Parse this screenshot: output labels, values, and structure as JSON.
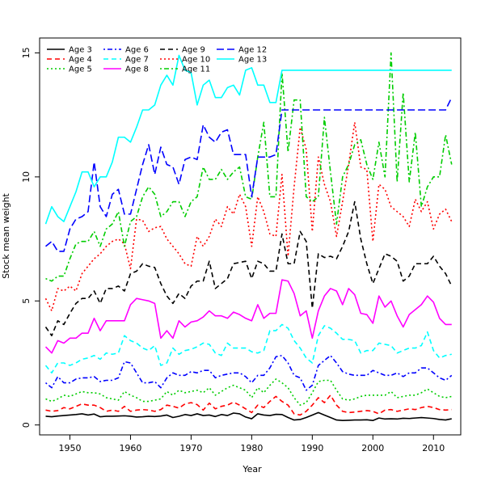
{
  "chart_data": {
    "type": "line",
    "xlabel": "Year",
    "ylabel": "Stock mean weight",
    "xlim": [
      1945,
      2014.5
    ],
    "ylim": [
      -0.4,
      15.6
    ],
    "x_ticks": [
      1950,
      1960,
      1970,
      1980,
      1990,
      2000,
      2010
    ],
    "y_ticks": [
      0,
      5,
      10,
      15
    ],
    "grid": false,
    "legend_position": "top-left",
    "x": [
      1946,
      1947,
      1948,
      1949,
      1950,
      1951,
      1952,
      1953,
      1954,
      1955,
      1956,
      1957,
      1958,
      1959,
      1960,
      1961,
      1962,
      1963,
      1964,
      1965,
      1966,
      1967,
      1968,
      1969,
      1970,
      1971,
      1972,
      1973,
      1974,
      1975,
      1976,
      1977,
      1978,
      1979,
      1980,
      1981,
      1982,
      1983,
      1984,
      1985,
      1986,
      1987,
      1988,
      1989,
      1990,
      1991,
      1992,
      1993,
      1994,
      1995,
      1996,
      1997,
      1998,
      1999,
      2000,
      2001,
      2002,
      2003,
      2004,
      2005,
      2006,
      2007,
      2008,
      2009,
      2010,
      2011,
      2012,
      2013
    ],
    "series": [
      {
        "name": "Age 3",
        "color": "#000000",
        "dash": "solid",
        "values": [
          0.35,
          0.33,
          0.36,
          0.38,
          0.4,
          0.42,
          0.45,
          0.4,
          0.44,
          0.33,
          0.35,
          0.35,
          0.36,
          0.37,
          0.35,
          0.32,
          0.33,
          0.35,
          0.34,
          0.36,
          0.4,
          0.3,
          0.35,
          0.42,
          0.38,
          0.45,
          0.38,
          0.4,
          0.34,
          0.42,
          0.38,
          0.48,
          0.45,
          0.32,
          0.25,
          0.45,
          0.4,
          0.38,
          0.43,
          0.42,
          0.3,
          0.2,
          0.22,
          0.3,
          0.4,
          0.5,
          0.4,
          0.3,
          0.2,
          0.18,
          0.19,
          0.2,
          0.2,
          0.21,
          0.18,
          0.28,
          0.24,
          0.25,
          0.24,
          0.27,
          0.26,
          0.28,
          0.3,
          0.28,
          0.26,
          0.22,
          0.2,
          0.25
        ]
      },
      {
        "name": "Age 4",
        "color": "#ff0000",
        "dash": "dashed",
        "values": [
          0.6,
          0.55,
          0.58,
          0.7,
          0.65,
          0.75,
          0.85,
          0.8,
          0.8,
          0.7,
          0.55,
          0.6,
          0.55,
          0.75,
          0.55,
          0.6,
          0.62,
          0.6,
          0.55,
          0.62,
          0.8,
          0.75,
          0.68,
          0.85,
          0.9,
          0.82,
          0.6,
          0.88,
          0.65,
          0.75,
          0.8,
          0.92,
          0.8,
          0.65,
          0.5,
          0.8,
          0.7,
          0.95,
          1.15,
          0.95,
          0.8,
          0.45,
          0.4,
          0.55,
          0.8,
          1.1,
          0.9,
          1.2,
          0.8,
          0.55,
          0.5,
          0.52,
          0.55,
          0.58,
          0.55,
          0.45,
          0.6,
          0.62,
          0.55,
          0.6,
          0.65,
          0.62,
          0.7,
          0.75,
          0.7,
          0.62,
          0.6,
          0.62
        ]
      },
      {
        "name": "Age 5",
        "color": "#00cd00",
        "dash": "dotted",
        "values": [
          1.05,
          0.95,
          1.05,
          1.2,
          1.15,
          1.25,
          1.35,
          1.3,
          1.3,
          1.25,
          1.1,
          1.05,
          1.0,
          1.35,
          1.2,
          1.1,
          0.95,
          0.95,
          1.0,
          1.05,
          1.35,
          1.2,
          1.4,
          1.3,
          1.35,
          1.4,
          1.3,
          1.5,
          1.2,
          1.35,
          1.5,
          1.6,
          1.5,
          1.4,
          1.1,
          1.5,
          1.3,
          1.6,
          1.85,
          1.7,
          1.5,
          1.1,
          0.8,
          0.9,
          1.3,
          1.75,
          1.8,
          1.8,
          1.4,
          1.05,
          1.0,
          1.05,
          1.15,
          1.2,
          1.2,
          1.2,
          1.2,
          1.35,
          1.1,
          1.15,
          1.2,
          1.2,
          1.3,
          1.45,
          1.3,
          1.15,
          1.1,
          1.15
        ]
      },
      {
        "name": "Age 6",
        "color": "#0000ff",
        "dash": "dashdot",
        "values": [
          1.7,
          1.5,
          1.95,
          1.7,
          1.7,
          1.85,
          1.9,
          1.9,
          1.95,
          1.75,
          1.8,
          1.8,
          1.9,
          2.55,
          2.5,
          2.1,
          1.7,
          1.7,
          1.75,
          1.5,
          1.9,
          2.1,
          2.0,
          2.0,
          2.15,
          2.1,
          2.2,
          2.2,
          1.9,
          2.0,
          2.05,
          2.1,
          2.1,
          1.95,
          1.7,
          2.0,
          2.0,
          2.3,
          2.75,
          2.8,
          2.5,
          2.0,
          1.9,
          1.4,
          1.6,
          2.4,
          2.6,
          2.8,
          2.5,
          2.15,
          2.05,
          2.0,
          2.0,
          2.0,
          2.2,
          2.1,
          2.0,
          2.0,
          2.1,
          1.95,
          2.1,
          2.1,
          2.3,
          2.3,
          2.1,
          1.9,
          1.8,
          2.0
        ]
      },
      {
        "name": "Age 7",
        "color": "#00ffff",
        "dash": "dashed",
        "values": [
          2.4,
          2.1,
          2.5,
          2.5,
          2.4,
          2.5,
          2.65,
          2.7,
          2.8,
          2.65,
          2.9,
          2.85,
          2.9,
          3.6,
          3.4,
          3.3,
          3.1,
          3.0,
          3.2,
          2.4,
          2.5,
          3.1,
          2.85,
          3.0,
          3.05,
          3.15,
          3.3,
          3.25,
          2.9,
          2.8,
          3.3,
          3.1,
          3.1,
          3.1,
          2.95,
          2.9,
          3.0,
          3.8,
          3.8,
          4.05,
          3.9,
          3.4,
          3.1,
          2.7,
          2.5,
          3.6,
          4.0,
          3.9,
          3.7,
          3.45,
          3.45,
          3.4,
          2.9,
          3.0,
          3.0,
          3.3,
          3.25,
          3.2,
          2.9,
          3.0,
          3.1,
          3.1,
          3.2,
          3.75,
          3.0,
          2.7,
          2.8,
          2.85
        ]
      },
      {
        "name": "Age 8",
        "color": "#ff00ff",
        "dash": "solid",
        "values": [
          3.15,
          2.9,
          3.4,
          3.3,
          3.5,
          3.5,
          3.7,
          3.7,
          4.3,
          3.8,
          4.2,
          4.2,
          4.2,
          4.2,
          4.85,
          5.1,
          5.05,
          5.0,
          4.9,
          3.5,
          3.8,
          3.5,
          4.2,
          3.95,
          4.15,
          4.2,
          4.35,
          4.6,
          4.4,
          4.4,
          4.3,
          4.55,
          4.45,
          4.3,
          4.2,
          4.85,
          4.3,
          4.5,
          4.5,
          5.85,
          5.8,
          5.3,
          4.4,
          4.6,
          3.5,
          4.6,
          5.2,
          5.5,
          5.4,
          4.85,
          5.5,
          5.25,
          4.5,
          4.45,
          4.1,
          5.2,
          4.75,
          5.0,
          4.4,
          3.95,
          4.45,
          4.65,
          4.85,
          5.2,
          4.95,
          4.3,
          4.05,
          4.05
        ]
      },
      {
        "name": "Age 9",
        "color": "#000000",
        "dash": "dashed",
        "values": [
          3.95,
          3.6,
          4.2,
          4.05,
          4.5,
          4.9,
          5.1,
          5.1,
          5.4,
          4.9,
          5.5,
          5.5,
          5.6,
          5.4,
          6.1,
          6.2,
          6.5,
          6.4,
          6.35,
          5.7,
          5.2,
          4.9,
          5.3,
          5.1,
          5.6,
          5.8,
          5.8,
          6.6,
          5.5,
          5.7,
          5.9,
          6.5,
          6.55,
          6.6,
          5.9,
          6.6,
          6.5,
          6.2,
          6.2,
          7.7,
          6.5,
          6.5,
          7.8,
          7.4,
          4.7,
          6.9,
          6.75,
          6.8,
          6.7,
          7.2,
          7.8,
          9.0,
          7.5,
          6.5,
          5.7,
          6.3,
          6.9,
          6.8,
          6.6,
          5.8,
          6.0,
          6.5,
          6.5,
          6.5,
          6.8,
          6.4,
          6.1,
          5.6
        ]
      },
      {
        "name": "Age 10",
        "color": "#ff0000",
        "dash": "dotted",
        "values": [
          5.1,
          4.6,
          5.5,
          5.4,
          5.6,
          5.4,
          6.1,
          6.4,
          6.7,
          6.9,
          7.2,
          7.4,
          7.5,
          7.3,
          6.3,
          8.3,
          8.25,
          7.8,
          7.95,
          8.0,
          7.5,
          7.2,
          6.9,
          6.5,
          6.4,
          7.6,
          7.2,
          7.6,
          8.3,
          8.0,
          8.8,
          8.5,
          9.3,
          8.8,
          7.2,
          9.2,
          8.6,
          7.7,
          7.6,
          10.1,
          6.8,
          9.6,
          12.0,
          11.1,
          7.8,
          10.8,
          9.7,
          9.0,
          7.6,
          9.0,
          10.5,
          12.2,
          10.4,
          10.3,
          7.4,
          9.7,
          9.5,
          8.8,
          8.6,
          8.4,
          8.0,
          9.1,
          8.6,
          9.0,
          7.9,
          8.5,
          8.7,
          8.2
        ]
      },
      {
        "name": "Age 11",
        "color": "#00cd00",
        "dash": "dashdot",
        "values": [
          5.9,
          5.8,
          6.0,
          6.0,
          6.7,
          7.3,
          7.4,
          7.4,
          7.8,
          7.2,
          7.9,
          8.1,
          8.6,
          7.2,
          8.2,
          8.4,
          9.2,
          9.6,
          9.3,
          8.4,
          8.6,
          9.0,
          9.0,
          8.4,
          9.0,
          9.2,
          10.4,
          9.9,
          9.9,
          10.3,
          9.9,
          10.2,
          10.4,
          9.2,
          9.1,
          10.8,
          12.2,
          9.2,
          9.2,
          14.2,
          11.0,
          13.1,
          13.1,
          9.2,
          9.0,
          9.2,
          12.4,
          10.2,
          8.1,
          10.0,
          10.5,
          11.3,
          11.5,
          10.5,
          9.9,
          11.4,
          10.0,
          15.0,
          9.8,
          13.4,
          9.8,
          11.8,
          8.8,
          9.6,
          10.0,
          10.0,
          11.7,
          10.5
        ]
      },
      {
        "name": "Age 12",
        "color": "#0000ff",
        "dash": "longdash",
        "values": [
          7.2,
          7.4,
          7.0,
          7.0,
          7.9,
          8.3,
          8.4,
          8.6,
          10.6,
          8.8,
          8.4,
          9.3,
          9.5,
          8.5,
          8.5,
          9.5,
          10.5,
          11.3,
          10.1,
          11.2,
          10.5,
          10.4,
          9.7,
          10.7,
          10.8,
          10.7,
          12.1,
          11.6,
          11.4,
          11.8,
          11.9,
          10.9,
          10.9,
          10.9,
          9.2,
          10.8,
          10.8,
          10.8,
          10.9,
          12.7,
          12.7,
          12.7,
          12.7,
          12.7,
          12.7,
          12.7,
          12.7,
          12.7,
          12.7,
          12.7,
          12.7,
          12.7,
          12.7,
          12.7,
          12.7,
          12.7,
          12.7,
          12.7,
          12.7,
          12.7,
          12.7,
          12.7,
          12.7,
          12.7,
          12.7,
          12.7,
          12.7,
          13.2
        ]
      },
      {
        "name": "Age 13",
        "color": "#00ffff",
        "dash": "solid",
        "values": [
          8.1,
          8.8,
          8.4,
          8.2,
          8.8,
          9.4,
          10.2,
          10.2,
          9.6,
          10.0,
          10.0,
          10.6,
          11.6,
          11.6,
          11.4,
          12.0,
          12.7,
          12.7,
          12.9,
          13.7,
          14.1,
          13.7,
          14.9,
          14.3,
          14.2,
          12.9,
          13.7,
          13.9,
          13.2,
          13.2,
          13.6,
          13.7,
          13.3,
          14.3,
          14.4,
          13.7,
          13.7,
          13.0,
          13.0,
          14.3,
          14.3,
          14.3,
          14.3,
          14.3,
          14.3,
          14.3,
          14.3,
          14.3,
          14.3,
          14.3,
          14.3,
          14.3,
          14.3,
          14.3,
          14.3,
          14.3,
          14.3,
          14.3,
          14.3,
          14.3,
          14.3,
          14.3,
          14.3,
          14.3,
          14.3,
          14.3,
          14.3,
          14.3
        ]
      }
    ]
  }
}
